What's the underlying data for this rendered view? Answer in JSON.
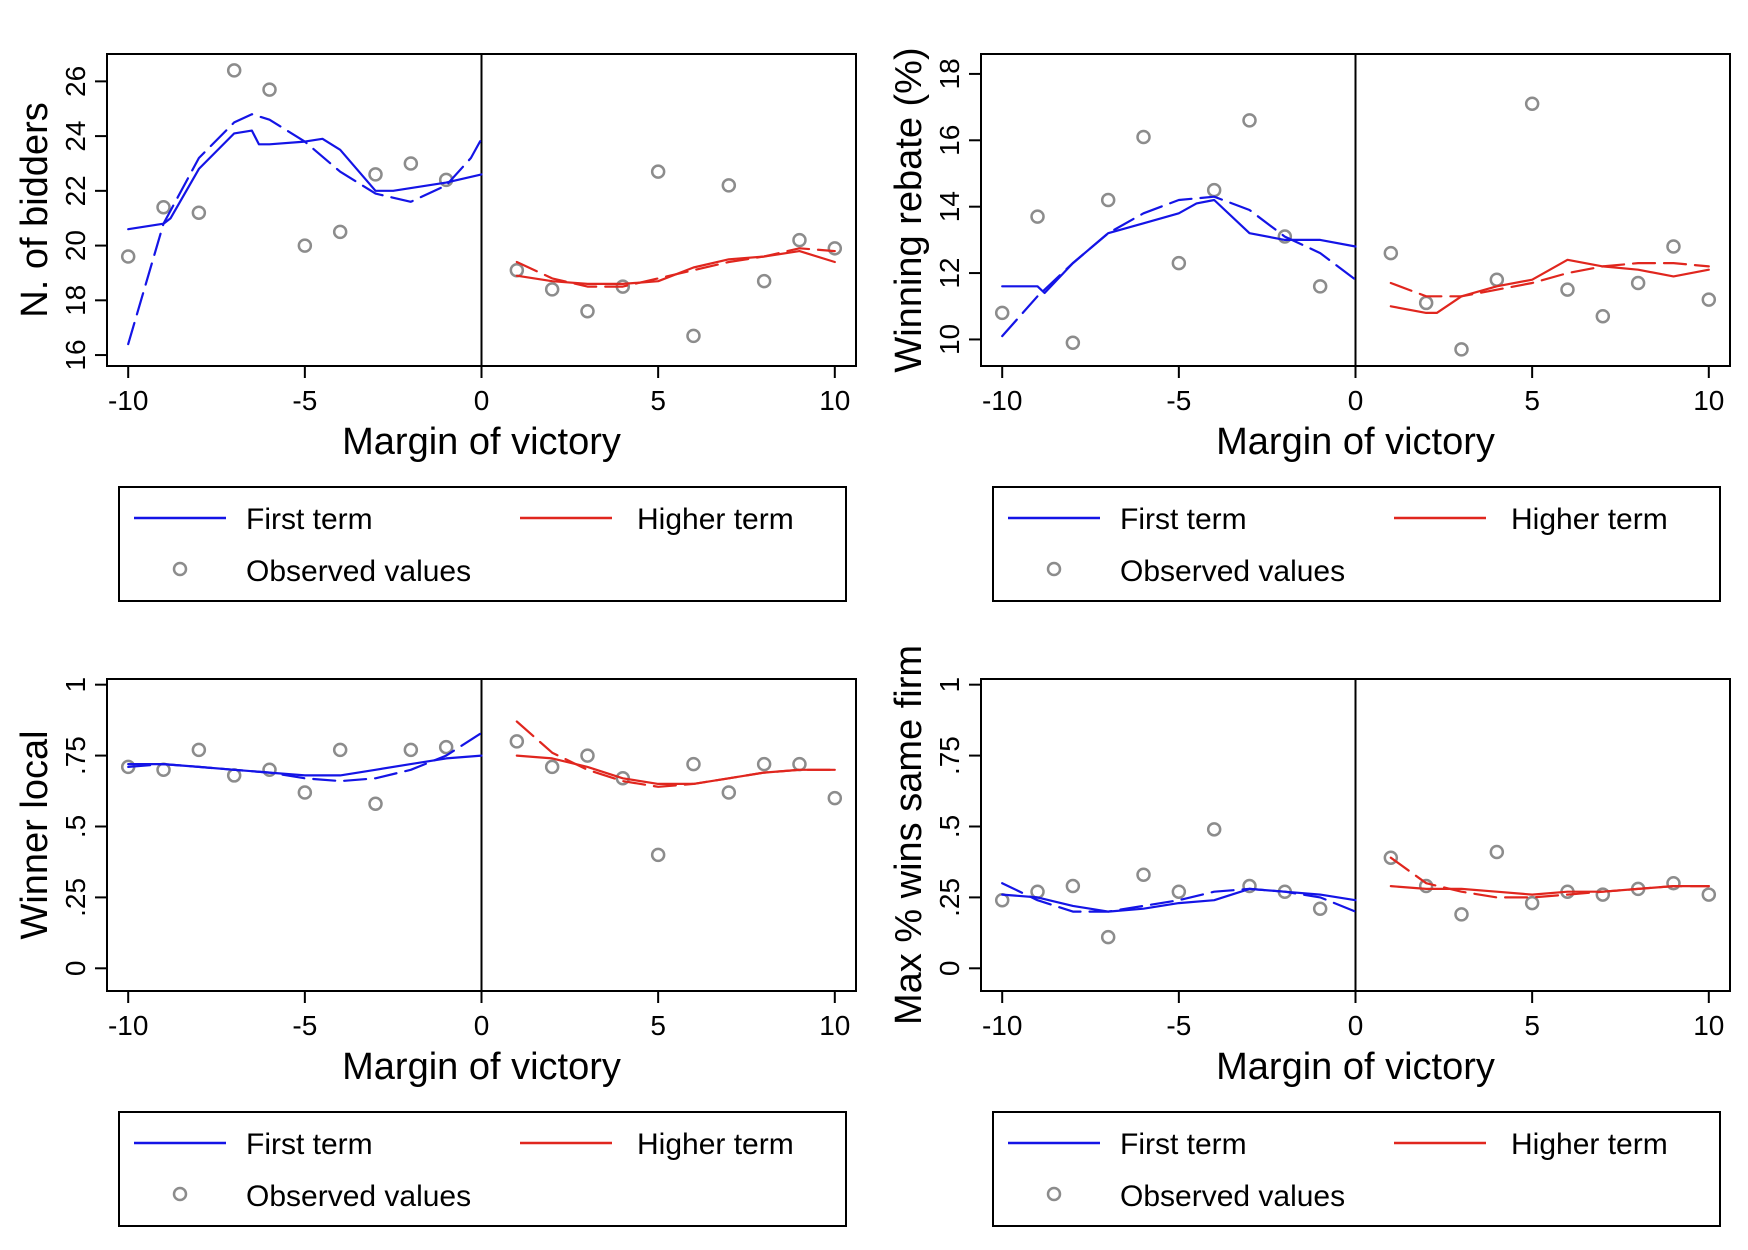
{
  "chart_data": [
    {
      "type": "scatter",
      "ylabel": "N. of bidders",
      "xlabel": "Margin of victory",
      "xlim": [
        -10.6,
        10.6
      ],
      "ylim": [
        15.6,
        27.0
      ],
      "xticks": [
        -10,
        -5,
        0,
        5,
        10
      ],
      "xtick_labels": [
        "-10",
        "-5",
        "0",
        "5",
        "10"
      ],
      "yticks": [
        16,
        18,
        20,
        22,
        24,
        26
      ],
      "ytick_labels": [
        "16",
        "18",
        "20",
        "22",
        "24",
        "26"
      ],
      "cutoff": 0,
      "grid": false,
      "legend_position": "bottom",
      "series": [
        {
          "name": "Observed values",
          "kind": "points",
          "x": [
            -10,
            -9,
            -8,
            -7,
            -6,
            -5,
            -4,
            -3,
            -2,
            -1,
            1,
            2,
            3,
            4,
            5,
            6,
            7,
            8,
            9,
            10
          ],
          "y": [
            19.6,
            21.4,
            21.2,
            26.4,
            25.7,
            20.0,
            20.5,
            22.6,
            23.0,
            22.4,
            19.1,
            18.4,
            17.6,
            18.5,
            22.7,
            16.7,
            22.2,
            18.7,
            20.2,
            19.9
          ]
        },
        {
          "name": "First term",
          "kind": "line",
          "x": [
            -10,
            -9,
            -8.8,
            -8,
            -7,
            -6.5,
            -6.3,
            -6,
            -5,
            -4.5,
            -4,
            -3,
            -2.5,
            -2,
            -1,
            0
          ],
          "y": [
            20.6,
            20.8,
            21.0,
            22.8,
            24.1,
            24.2,
            23.7,
            23.7,
            23.8,
            23.9,
            23.5,
            22.0,
            22.0,
            22.1,
            22.3,
            22.6
          ]
        },
        {
          "name": "First term (dashed fit)",
          "kind": "dashed",
          "x": [
            -10,
            -9,
            -8,
            -7,
            -6.5,
            -6,
            -5,
            -4,
            -3,
            -2,
            -1,
            -0.3,
            0
          ],
          "y": [
            16.4,
            20.8,
            23.2,
            24.5,
            24.8,
            24.6,
            23.8,
            22.7,
            21.9,
            21.6,
            22.2,
            23.2,
            23.9
          ]
        },
        {
          "name": "Higher term",
          "kind": "line",
          "x": [
            1,
            2,
            3,
            4,
            5,
            6,
            7,
            8,
            9,
            10
          ],
          "y": [
            18.9,
            18.7,
            18.6,
            18.6,
            18.7,
            19.2,
            19.5,
            19.6,
            19.8,
            19.4
          ]
        },
        {
          "name": "Higher term (dashed fit)",
          "kind": "dashed",
          "x": [
            1,
            2,
            3,
            4,
            5,
            6,
            7,
            8,
            9,
            10
          ],
          "y": [
            19.4,
            18.8,
            18.5,
            18.5,
            18.8,
            19.1,
            19.4,
            19.6,
            19.9,
            19.8
          ]
        }
      ],
      "legend": {
        "first": "First term",
        "higher": "Higher term",
        "observed": "Observed values"
      }
    },
    {
      "type": "scatter",
      "ylabel": "Winning rebate (%)",
      "xlabel": "Margin of victory",
      "xlim": [
        -10.6,
        10.6
      ],
      "ylim": [
        9.2,
        18.6
      ],
      "xticks": [
        -10,
        -5,
        0,
        5,
        10
      ],
      "xtick_labels": [
        "-10",
        "-5",
        "0",
        "5",
        "10"
      ],
      "yticks": [
        10,
        12,
        14,
        16,
        18
      ],
      "ytick_labels": [
        "10",
        "12",
        "14",
        "16",
        "18"
      ],
      "cutoff": 0,
      "grid": false,
      "legend_position": "bottom",
      "series": [
        {
          "name": "Observed values",
          "kind": "points",
          "x": [
            -10,
            -9,
            -8,
            -7,
            -6,
            -5,
            -4,
            -3,
            -2,
            -1,
            1,
            2,
            3,
            4,
            5,
            6,
            7,
            8,
            9,
            10
          ],
          "y": [
            10.8,
            13.7,
            9.9,
            14.2,
            16.1,
            12.3,
            14.5,
            16.6,
            13.1,
            11.6,
            12.6,
            11.1,
            9.7,
            11.8,
            17.1,
            11.5,
            10.7,
            11.7,
            12.8,
            11.2
          ]
        },
        {
          "name": "First term",
          "kind": "line",
          "x": [
            -10,
            -9,
            -8.8,
            -8,
            -7,
            -6,
            -5,
            -4.5,
            -4,
            -3,
            -2,
            -1,
            0
          ],
          "y": [
            11.6,
            11.6,
            11.4,
            12.3,
            13.2,
            13.5,
            13.8,
            14.1,
            14.2,
            13.2,
            13.0,
            13.0,
            12.8
          ]
        },
        {
          "name": "First term (dashed fit)",
          "kind": "dashed",
          "x": [
            -10,
            -9,
            -8,
            -7,
            -6,
            -5,
            -4,
            -3,
            -2,
            -1,
            0
          ],
          "y": [
            10.1,
            11.3,
            12.3,
            13.2,
            13.8,
            14.2,
            14.3,
            13.9,
            13.1,
            12.6,
            11.8
          ]
        },
        {
          "name": "Higher term",
          "kind": "line",
          "x": [
            1,
            2,
            2.3,
            3,
            4,
            5,
            6,
            7,
            8,
            9,
            10
          ],
          "y": [
            11.0,
            10.8,
            10.8,
            11.3,
            11.6,
            11.8,
            12.4,
            12.2,
            12.1,
            11.9,
            12.1
          ]
        },
        {
          "name": "Higher term (dashed fit)",
          "kind": "dashed",
          "x": [
            1,
            2,
            3,
            4,
            5,
            6,
            7,
            8,
            9,
            10
          ],
          "y": [
            11.7,
            11.3,
            11.3,
            11.5,
            11.7,
            12.0,
            12.2,
            12.3,
            12.3,
            12.2
          ]
        }
      ],
      "legend": {
        "first": "First term",
        "higher": "Higher term",
        "observed": "Observed values"
      }
    },
    {
      "type": "scatter",
      "ylabel": "Winner local",
      "xlabel": "Margin of victory",
      "xlim": [
        -10.6,
        10.6
      ],
      "ylim": [
        -0.08,
        1.02
      ],
      "xticks": [
        -10,
        -5,
        0,
        5,
        10
      ],
      "xtick_labels": [
        "-10",
        "-5",
        "0",
        "5",
        "10"
      ],
      "yticks": [
        0,
        0.25,
        0.5,
        0.75,
        1
      ],
      "ytick_labels": [
        "0",
        ".25",
        ".5",
        ".75",
        "1"
      ],
      "cutoff": 0,
      "grid": false,
      "legend_position": "bottom",
      "series": [
        {
          "name": "Observed values",
          "kind": "points",
          "x": [
            -10,
            -9,
            -8,
            -7,
            -6,
            -5,
            -4,
            -3,
            -2,
            -1,
            1,
            2,
            3,
            4,
            5,
            6,
            7,
            8,
            9,
            10
          ],
          "y": [
            0.71,
            0.7,
            0.77,
            0.68,
            0.7,
            0.62,
            0.77,
            0.58,
            0.77,
            0.78,
            0.8,
            0.71,
            0.75,
            0.67,
            0.4,
            0.72,
            0.62,
            0.72,
            0.72,
            0.6
          ]
        },
        {
          "name": "First term",
          "kind": "line",
          "x": [
            -10,
            -9,
            -8,
            -7,
            -6,
            -5,
            -4,
            -3,
            -2,
            -1,
            0
          ],
          "y": [
            0.72,
            0.72,
            0.71,
            0.7,
            0.69,
            0.68,
            0.68,
            0.7,
            0.72,
            0.74,
            0.75
          ]
        },
        {
          "name": "First term (dashed fit)",
          "kind": "dashed",
          "x": [
            -10,
            -9,
            -8,
            -7,
            -6,
            -5,
            -4,
            -3,
            -2,
            -1,
            0
          ],
          "y": [
            0.71,
            0.72,
            0.71,
            0.7,
            0.69,
            0.67,
            0.66,
            0.67,
            0.7,
            0.75,
            0.83
          ]
        },
        {
          "name": "Higher term",
          "kind": "line",
          "x": [
            1,
            2,
            3,
            4,
            5,
            6,
            7,
            8,
            9,
            10
          ],
          "y": [
            0.75,
            0.74,
            0.71,
            0.67,
            0.65,
            0.65,
            0.67,
            0.69,
            0.7,
            0.7
          ]
        },
        {
          "name": "Higher term (dashed fit)",
          "kind": "dashed",
          "x": [
            1,
            2,
            3,
            4,
            5,
            6,
            7,
            8,
            9,
            10
          ],
          "y": [
            0.87,
            0.76,
            0.7,
            0.66,
            0.64,
            0.65,
            0.67,
            0.69,
            0.7,
            0.7
          ]
        }
      ],
      "legend": {
        "first": "First term",
        "higher": "Higher term",
        "observed": "Observed values"
      }
    },
    {
      "type": "scatter",
      "ylabel": "Max % wins same firm",
      "xlabel": "Margin of victory",
      "xlim": [
        -10.6,
        10.6
      ],
      "ylim": [
        -0.08,
        1.02
      ],
      "xticks": [
        -10,
        -5,
        0,
        5,
        10
      ],
      "xtick_labels": [
        "-10",
        "-5",
        "0",
        "5",
        "10"
      ],
      "yticks": [
        0,
        0.25,
        0.5,
        0.75,
        1
      ],
      "ytick_labels": [
        "0",
        ".25",
        ".5",
        ".75",
        "1"
      ],
      "cutoff": 0,
      "grid": false,
      "legend_position": "bottom",
      "series": [
        {
          "name": "Observed values",
          "kind": "points",
          "x": [
            -10,
            -9,
            -8,
            -7,
            -6,
            -5,
            -4,
            -3,
            -2,
            -1,
            1,
            2,
            3,
            4,
            5,
            6,
            7,
            8,
            9,
            10
          ],
          "y": [
            0.24,
            0.27,
            0.29,
            0.11,
            0.33,
            0.27,
            0.49,
            0.29,
            0.27,
            0.21,
            0.39,
            0.29,
            0.19,
            0.41,
            0.23,
            0.27,
            0.26,
            0.28,
            0.3,
            0.26
          ]
        },
        {
          "name": "First term",
          "kind": "line",
          "x": [
            -10,
            -9,
            -8,
            -7,
            -6,
            -5,
            -4,
            -3,
            -2,
            -1,
            0
          ],
          "y": [
            0.26,
            0.25,
            0.22,
            0.2,
            0.21,
            0.23,
            0.24,
            0.28,
            0.27,
            0.26,
            0.24
          ]
        },
        {
          "name": "First term (dashed fit)",
          "kind": "dashed",
          "x": [
            -10,
            -9,
            -8,
            -7,
            -6,
            -5,
            -4,
            -3,
            -2,
            -1,
            0
          ],
          "y": [
            0.3,
            0.24,
            0.2,
            0.2,
            0.22,
            0.24,
            0.27,
            0.28,
            0.27,
            0.25,
            0.2
          ]
        },
        {
          "name": "Higher term",
          "kind": "line",
          "x": [
            1,
            2,
            3,
            4,
            5,
            6,
            7,
            8,
            9,
            10
          ],
          "y": [
            0.29,
            0.28,
            0.28,
            0.27,
            0.26,
            0.27,
            0.27,
            0.28,
            0.29,
            0.29
          ]
        },
        {
          "name": "Higher term (dashed fit)",
          "kind": "dashed",
          "x": [
            1,
            2,
            3,
            4,
            5,
            6,
            7,
            8,
            9,
            10
          ],
          "y": [
            0.39,
            0.3,
            0.27,
            0.25,
            0.25,
            0.26,
            0.27,
            0.28,
            0.29,
            0.29
          ]
        }
      ],
      "legend": {
        "first": "First term",
        "higher": "Higher term",
        "observed": "Observed values"
      }
    }
  ],
  "colors": {
    "first_term": "#1414e6",
    "higher_term": "#e0261e",
    "observed": "#8c8c8c",
    "frame": "#000000"
  }
}
